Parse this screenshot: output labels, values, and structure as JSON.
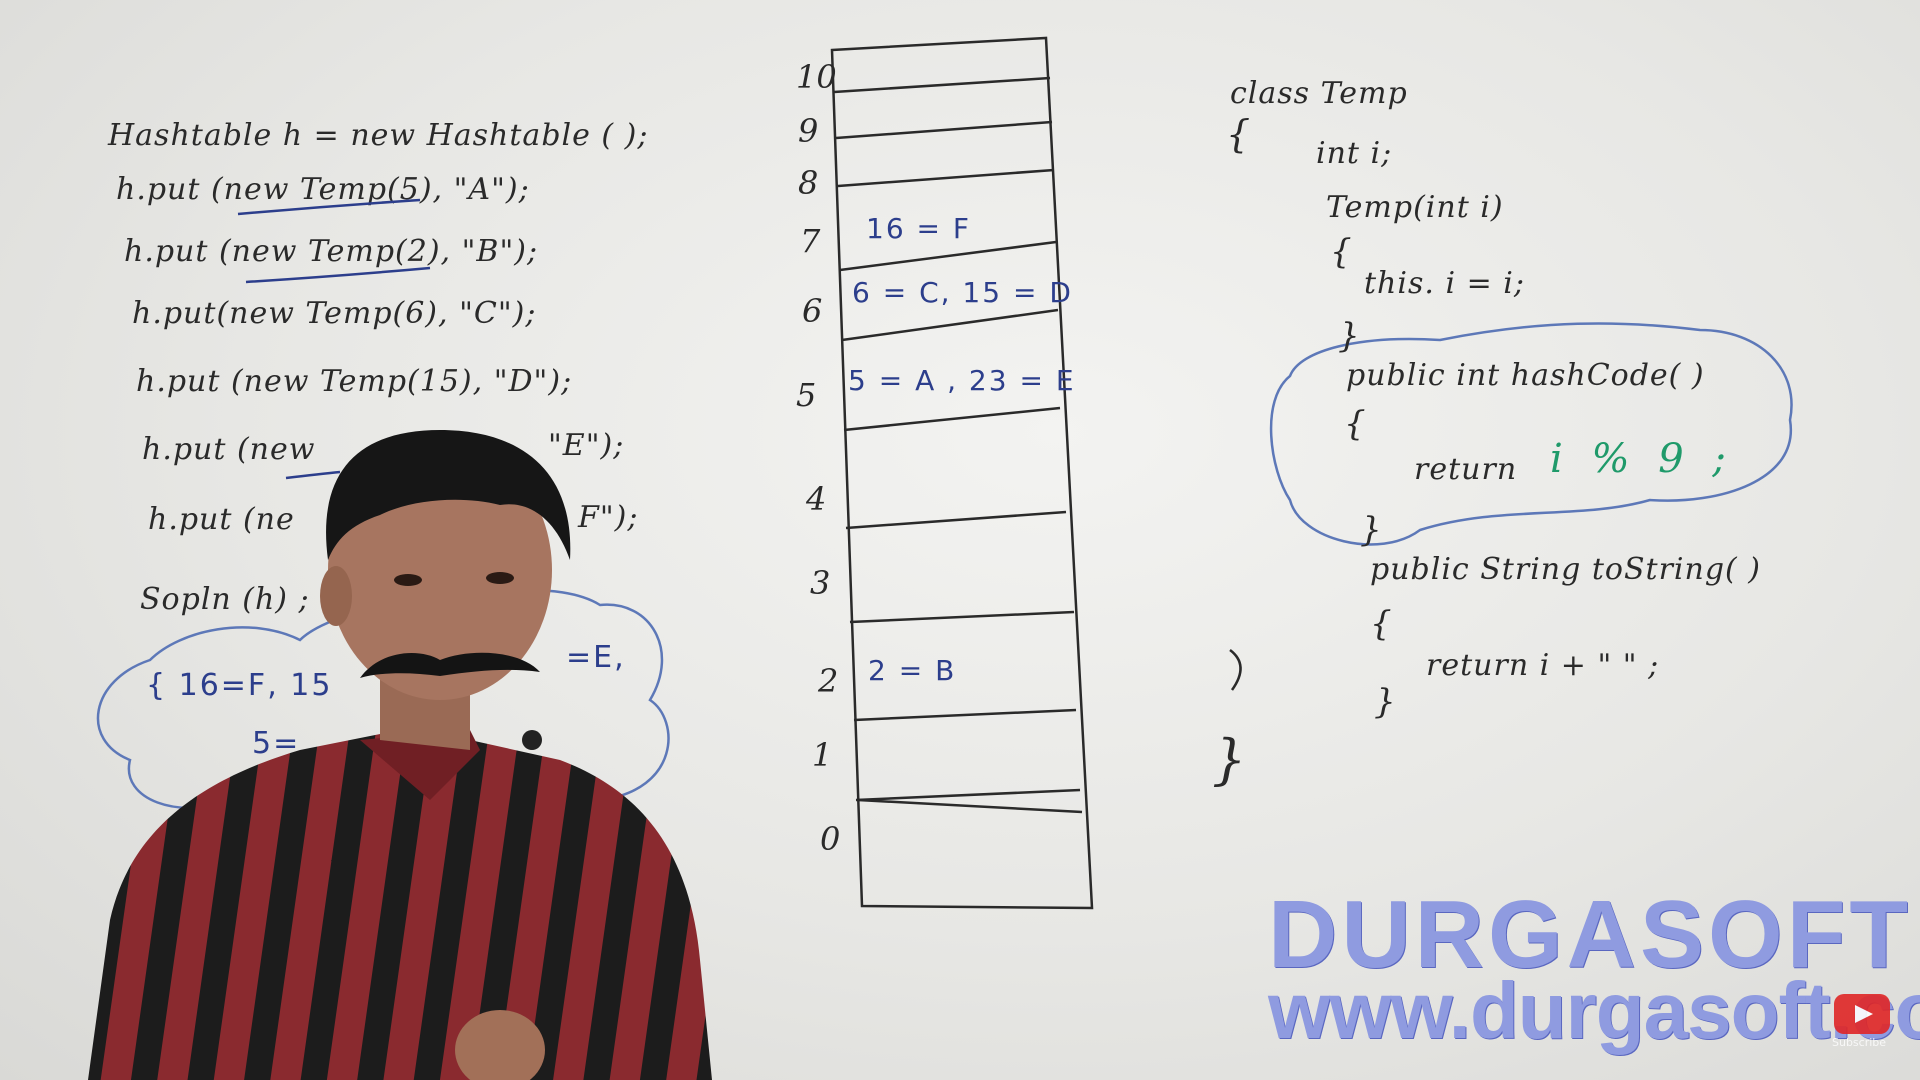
{
  "left_code": [
    "Hashtable  h = new  Hashtable ( );",
    "h.put (new Temp(5), \"A\");",
    "h.put (new Temp(2), \"B\");",
    "h.put(new  Temp(6), \"C\");",
    "h.put (new  Temp(15), \"D\");",
    "h.put (new",
    "\"E\");",
    "h.put (ne",
    "F\");",
    "Sopln (h) ;"
  ],
  "output_cloud": {
    "line1_left": "{ 16=F, 15",
    "line1_right": "=E,",
    "line2": "5="
  },
  "hashtable": {
    "slots": [
      "10",
      "9",
      "8",
      "7",
      "6",
      "5",
      "4",
      "3",
      "2",
      "1",
      "0"
    ],
    "entries": {
      "slot7": "16 = F",
      "slot6": "6 = C, 15 = D",
      "slot5": "5 = A , 23 = E",
      "slot2": "2 = B"
    }
  },
  "right_code": {
    "class_decl": "class   Temp",
    "open_brace": "{",
    "field": "int  i;",
    "constructor": "Temp(int  i)",
    "ctor_open": "{",
    "ctor_body": "this. i = i;",
    "ctor_close": "}",
    "hash_sig": "public   int   hashCode( )",
    "hash_open": "{",
    "hash_return": "return",
    "hash_expr": "i % 9 ;",
    "hash_close": "}",
    "tostring_sig": "public   String   toString( )",
    "tostring_open": "{",
    "tostring_body": "return    i + \" \" ;",
    "tostring_close": "}",
    "class_close": "}"
  },
  "watermark": {
    "brand": "DURGASOFT",
    "url": "www.durgasoft.com"
  },
  "youtube": {
    "subscribe_label": "Subscribe"
  },
  "colors": {
    "board": "#ececea",
    "marker_black": "#2a2a2a",
    "marker_blue": "#2c3e8c",
    "marker_green": "#1f9a6a",
    "watermark": "#8f9be0",
    "shirt_red": "#8a2a2f",
    "shirt_black": "#1c1c1c"
  }
}
